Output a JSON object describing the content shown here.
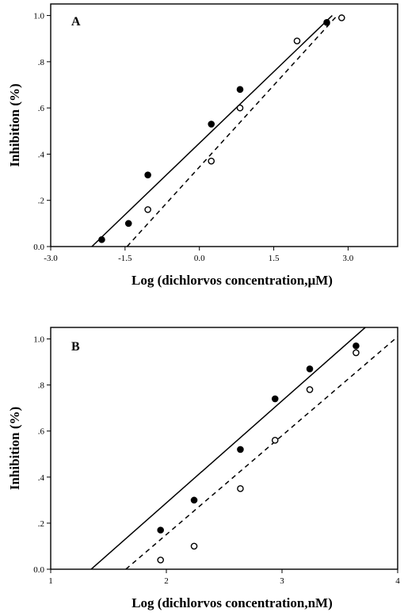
{
  "chart_data": [
    {
      "type": "scatter",
      "panel_label": "A",
      "xlabel": "Log (dichlorvos concentration,µM)",
      "ylabel": "Inhibition (%)",
      "xlim": [
        -3.0,
        4.0
      ],
      "ylim": [
        0.0,
        1.05
      ],
      "xticks": [
        -3.0,
        -1.5,
        0.0,
        1.5,
        3.0
      ],
      "xtick_labels": [
        "-3.0",
        "-1.5",
        "0.0",
        "1.5",
        "3.0"
      ],
      "yticks": [
        0.0,
        0.2,
        0.4,
        0.6,
        0.8,
        1.0
      ],
      "ytick_labels": [
        "0.0",
        ".2",
        ".4",
        ".6",
        ".8",
        "1.0"
      ],
      "grid": false,
      "series": [
        {
          "marker": "filled-circle",
          "x": [
            -1.97,
            -1.43,
            -1.04,
            0.24,
            0.82,
            2.57
          ],
          "y": [
            0.03,
            0.1,
            0.31,
            0.53,
            0.68,
            0.97
          ],
          "fit": {
            "style": "solid",
            "x": [
              -2.17,
              2.68
            ],
            "y": [
              0.0,
              1.0
            ]
          }
        },
        {
          "marker": "open-circle",
          "x": [
            -1.04,
            0.24,
            0.82,
            1.97,
            2.87
          ],
          "y": [
            0.16,
            0.37,
            0.6,
            0.89,
            0.99
          ],
          "fit": {
            "style": "dashed",
            "x": [
              -1.46,
              2.78
            ],
            "y": [
              0.0,
              1.0
            ]
          }
        }
      ]
    },
    {
      "type": "scatter",
      "panel_label": "B",
      "xlabel": "Log (dichlorvos concentration,nM)",
      "ylabel": "Inhibition (%)",
      "xlim": [
        1.0,
        4.0
      ],
      "ylim": [
        0.0,
        1.05
      ],
      "xticks": [
        1,
        2,
        3,
        4
      ],
      "xtick_labels": [
        "1",
        "2",
        "3",
        "4"
      ],
      "yticks": [
        0.0,
        0.2,
        0.4,
        0.6,
        0.8,
        1.0
      ],
      "ytick_labels": [
        "0.0",
        ".2",
        ".4",
        ".6",
        ".8",
        "1.0"
      ],
      "grid": false,
      "series": [
        {
          "marker": "filled-circle",
          "x": [
            1.95,
            2.24,
            2.64,
            2.94,
            3.24,
            3.64
          ],
          "y": [
            0.17,
            0.3,
            0.52,
            0.74,
            0.87,
            0.97
          ],
          "fit": {
            "style": "solid",
            "x": [
              1.35,
              3.72
            ],
            "y": [
              0.0,
              1.05
            ]
          }
        },
        {
          "marker": "open-circle",
          "x": [
            1.95,
            2.24,
            2.64,
            2.94,
            3.24,
            3.64
          ],
          "y": [
            0.04,
            0.1,
            0.35,
            0.56,
            0.78,
            0.94
          ],
          "fit": {
            "style": "dashed",
            "x": [
              1.65,
              4.0
            ],
            "y": [
              0.0,
              1.01
            ]
          }
        }
      ]
    }
  ]
}
